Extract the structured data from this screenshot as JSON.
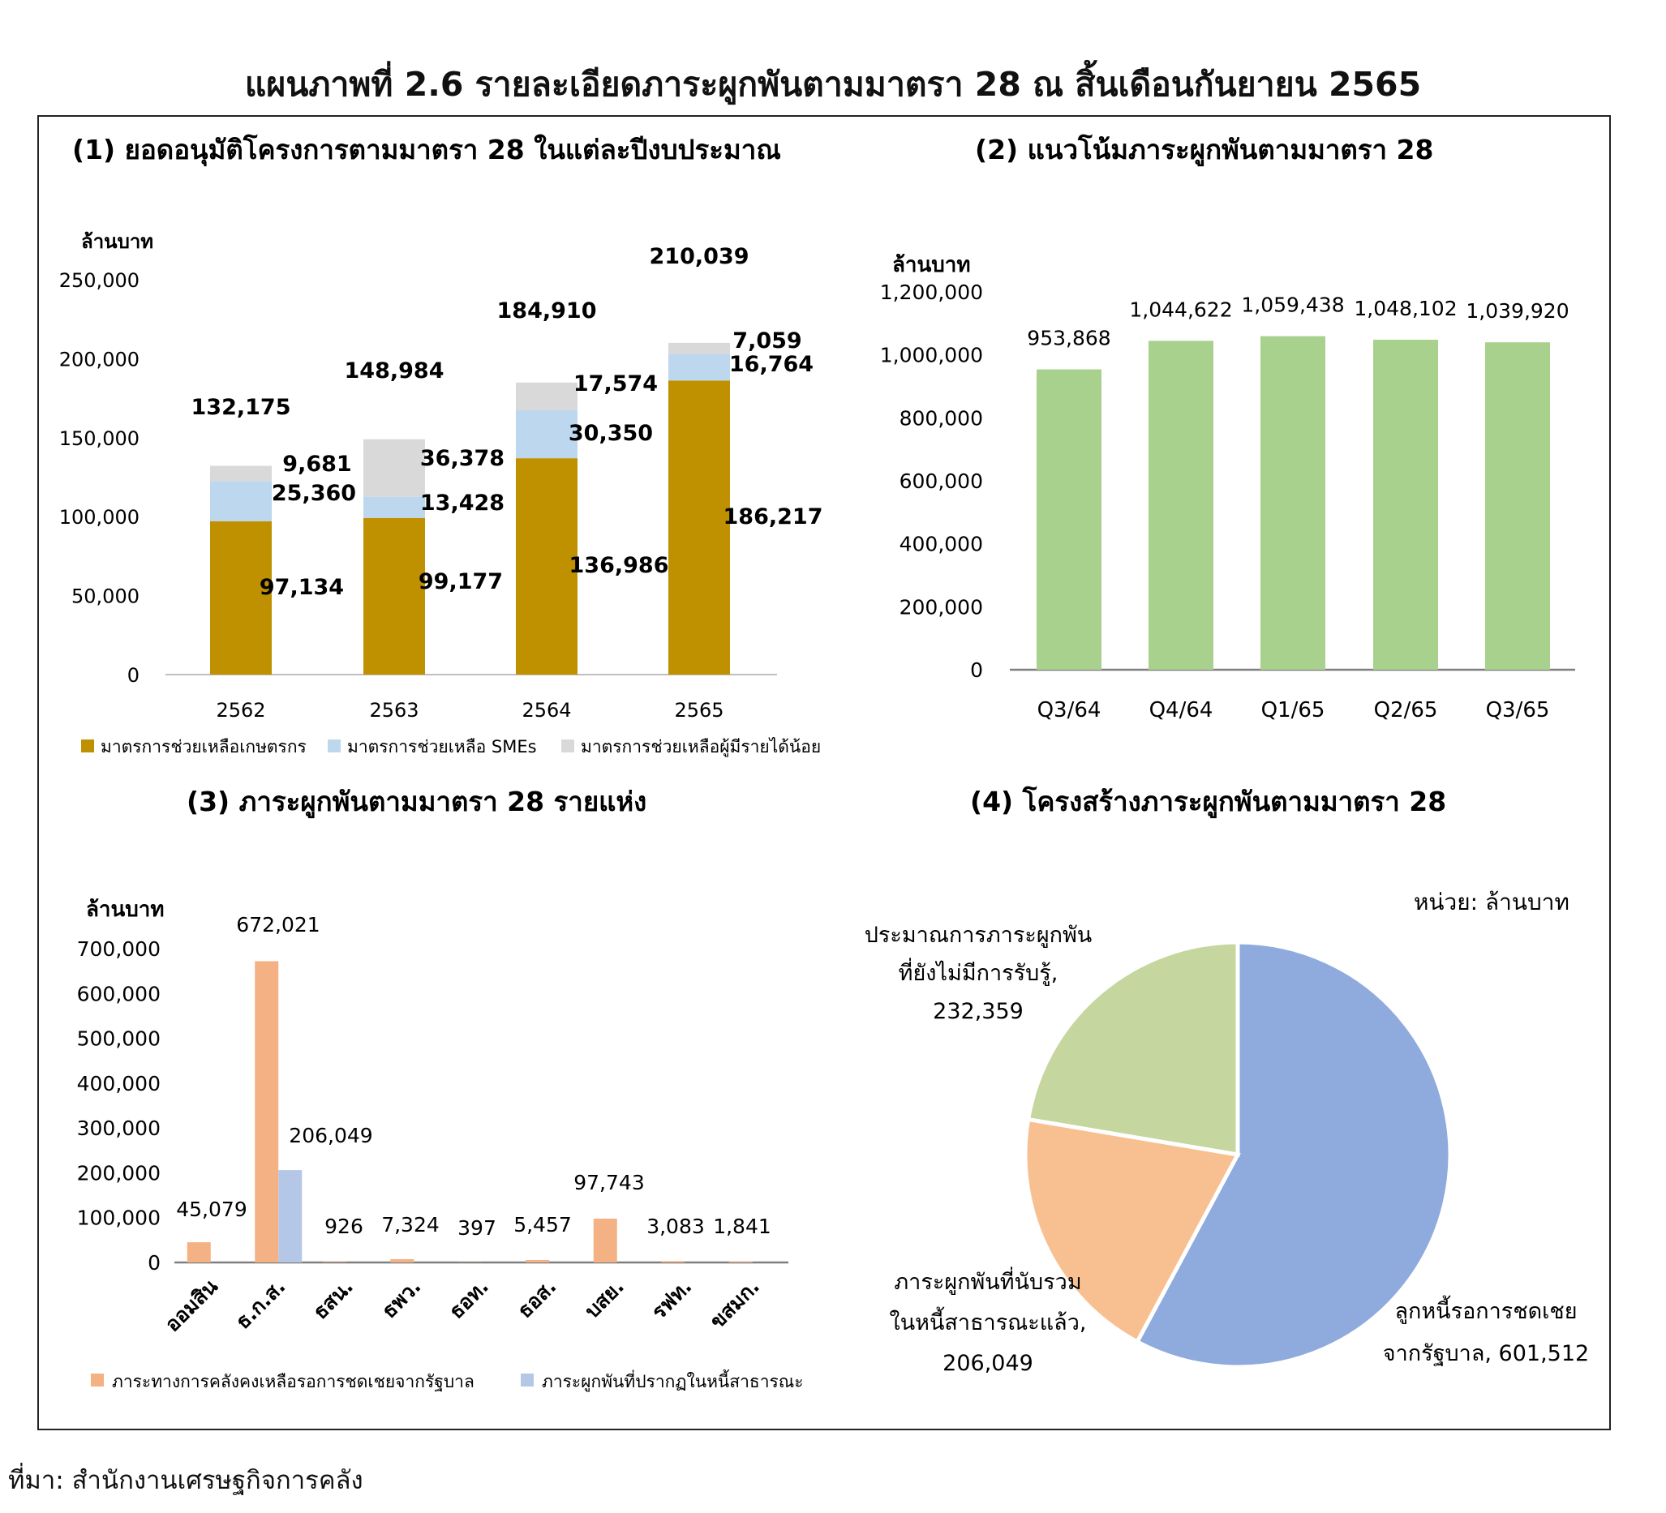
{
  "title": "แผนภาพที่ 2.6  รายละเอียดภาระผูกพันตามมาตรา 28 ณ สิ้นเดือนกันยายน 2565",
  "source": "ที่มา: สำนักงานเศรษฐกิจการคลัง",
  "colors": {
    "farm": "#bf9000",
    "sme": "#bdd7ee",
    "low_income": "#d9d9d9",
    "trend": "#a9d18e",
    "fiscal": "#f4b183",
    "public_debt": "#b4c7e7",
    "pie_waiting": "#8faadc",
    "pie_included": "#f8c090",
    "pie_unrecognized": "#c5d79f"
  },
  "chart_data": [
    {
      "id": "panel1",
      "type": "bar",
      "stacked": true,
      "title": "(1) ยอดอนุมัติโครงการตามมาตรา 28 ในแต่ละปีงบประมาณ",
      "ylabel": "ล้านบาท",
      "ylim": [
        0,
        250000
      ],
      "yticks": [
        "0",
        "50,000",
        "100,000",
        "150,000",
        "200,000",
        "250,000"
      ],
      "categories": [
        "2562",
        "2563",
        "2564",
        "2565"
      ],
      "series": [
        {
          "name": "มาตรการช่วยเหลือเกษตรกร",
          "values": [
            97134,
            99177,
            136986,
            186217
          ],
          "labels": [
            "97,134",
            "99,177",
            "136,986",
            "186,217"
          ]
        },
        {
          "name": "มาตรการช่วยเหลือ SMEs",
          "values": [
            25360,
            13428,
            30350,
            16764
          ],
          "labels": [
            "25,360",
            "13,428",
            "30,350",
            "16,764"
          ]
        },
        {
          "name": "มาตรการช่วยเหลือผู้มีรายได้น้อย",
          "values": [
            9681,
            36378,
            17574,
            7059
          ],
          "labels": [
            "9,681",
            "36,378",
            "17,574",
            "7,059"
          ]
        }
      ],
      "totals": [
        "132,175",
        "148,984",
        "184,910",
        "210,039"
      ],
      "legend": "bottom"
    },
    {
      "id": "panel2",
      "type": "bar",
      "title": "(2) แนวโน้มภาระผูกพันตามมาตรา 28",
      "ylabel": "ล้านบาท",
      "ylim": [
        0,
        1200000
      ],
      "yticks": [
        "0",
        "200,000",
        "400,000",
        "600,000",
        "800,000",
        "1,000,000",
        "1,200,000"
      ],
      "categories": [
        "Q3/64",
        "Q4/64",
        "Q1/65",
        "Q2/65",
        "Q3/65"
      ],
      "values": [
        953868,
        1044622,
        1059438,
        1048102,
        1039920
      ],
      "labels": [
        "953,868",
        "1,044,622",
        "1,059,438",
        "1,048,102",
        "1,039,920"
      ]
    },
    {
      "id": "panel3",
      "type": "bar",
      "title": "(3) ภาระผูกพันตามมาตรา 28 รายแห่ง",
      "ylabel": "ล้านบาท",
      "ylim": [
        0,
        700000
      ],
      "yticks": [
        "0",
        "100,000",
        "200,000",
        "300,000",
        "400,000",
        "500,000",
        "600,000",
        "700,000"
      ],
      "categories": [
        "ออมสิน",
        "ธ.ก.ส.",
        "ธสน.",
        "ธพว.",
        "ธอท.",
        "ธอส.",
        "บสย.",
        "รฟท.",
        "ขสมก."
      ],
      "series": [
        {
          "name": "ภาระทางการคลังคงเหลือรอการชดเชยจากรัฐบาล",
          "values": [
            45079,
            672021,
            926,
            7324,
            397,
            5457,
            97743,
            3083,
            1841
          ],
          "labels": [
            "45,079",
            "672,021",
            "926",
            "7,324",
            "397",
            "5,457",
            "97,743",
            "3,083",
            "1,841"
          ]
        },
        {
          "name": "ภาระผูกพันที่ปรากฏในหนี้สาธารณะ",
          "values": [
            0,
            206049,
            0,
            0,
            0,
            0,
            0,
            0,
            0
          ],
          "labels": [
            "",
            "206,049",
            "",
            "",
            "",
            "",
            "",
            "",
            ""
          ]
        }
      ],
      "legend": "bottom"
    },
    {
      "id": "panel4",
      "type": "pie",
      "title": "(4) โครงสร้างภาระผูกพันตามมาตรา 28",
      "unit": "หน่วย: ล้านบาท",
      "slices": [
        {
          "label_lines": [
            "ลูกหนี้รอการชดเชย",
            "จากรัฐบาล,  601,512"
          ],
          "value": 601512
        },
        {
          "label_lines": [
            "ภาระผูกพันที่นับรวม",
            "ในหนี้สาธารณะแล้ว,",
            "206,049"
          ],
          "value": 206049
        },
        {
          "label_lines": [
            "ประมาณการภาระผูกพัน",
            "ที่ยังไม่มีการรับรู้,",
            "232,359"
          ],
          "value": 232359
        }
      ]
    }
  ]
}
